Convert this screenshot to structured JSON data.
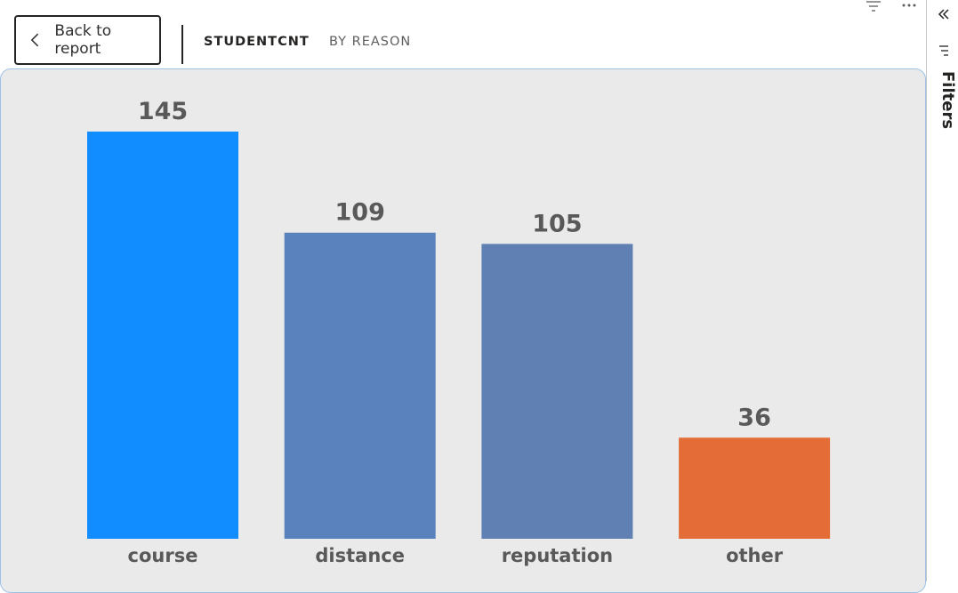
{
  "header": {
    "back_label": "Back to report",
    "tabs": [
      {
        "label": "STUDENTCNT",
        "active": true
      },
      {
        "label": "BY REASON",
        "active": false
      }
    ]
  },
  "toolbar_icons": [
    "filter-icon",
    "more-options-icon"
  ],
  "filters_pane": {
    "label": "Filters",
    "icons": [
      "collapse-double-chevron-icon",
      "filter-icon"
    ]
  },
  "colors": {
    "course": "#118dff",
    "distance": "#5a82bc",
    "reputation": "#6080b4",
    "other": "#e46c37",
    "labels": "#595959"
  },
  "chart_data": {
    "type": "bar",
    "categories": [
      "course",
      "distance",
      "reputation",
      "other"
    ],
    "values": [
      145,
      109,
      105,
      36
    ],
    "data_labels": [
      "145",
      "109",
      "105",
      "36"
    ],
    "bar_colors": [
      "#118dff",
      "#5a82bc",
      "#6080b4",
      "#e46c37"
    ],
    "ylim": [
      0,
      145
    ],
    "title": "",
    "xlabel": "",
    "ylabel": "",
    "grid": false,
    "legend": "none"
  }
}
